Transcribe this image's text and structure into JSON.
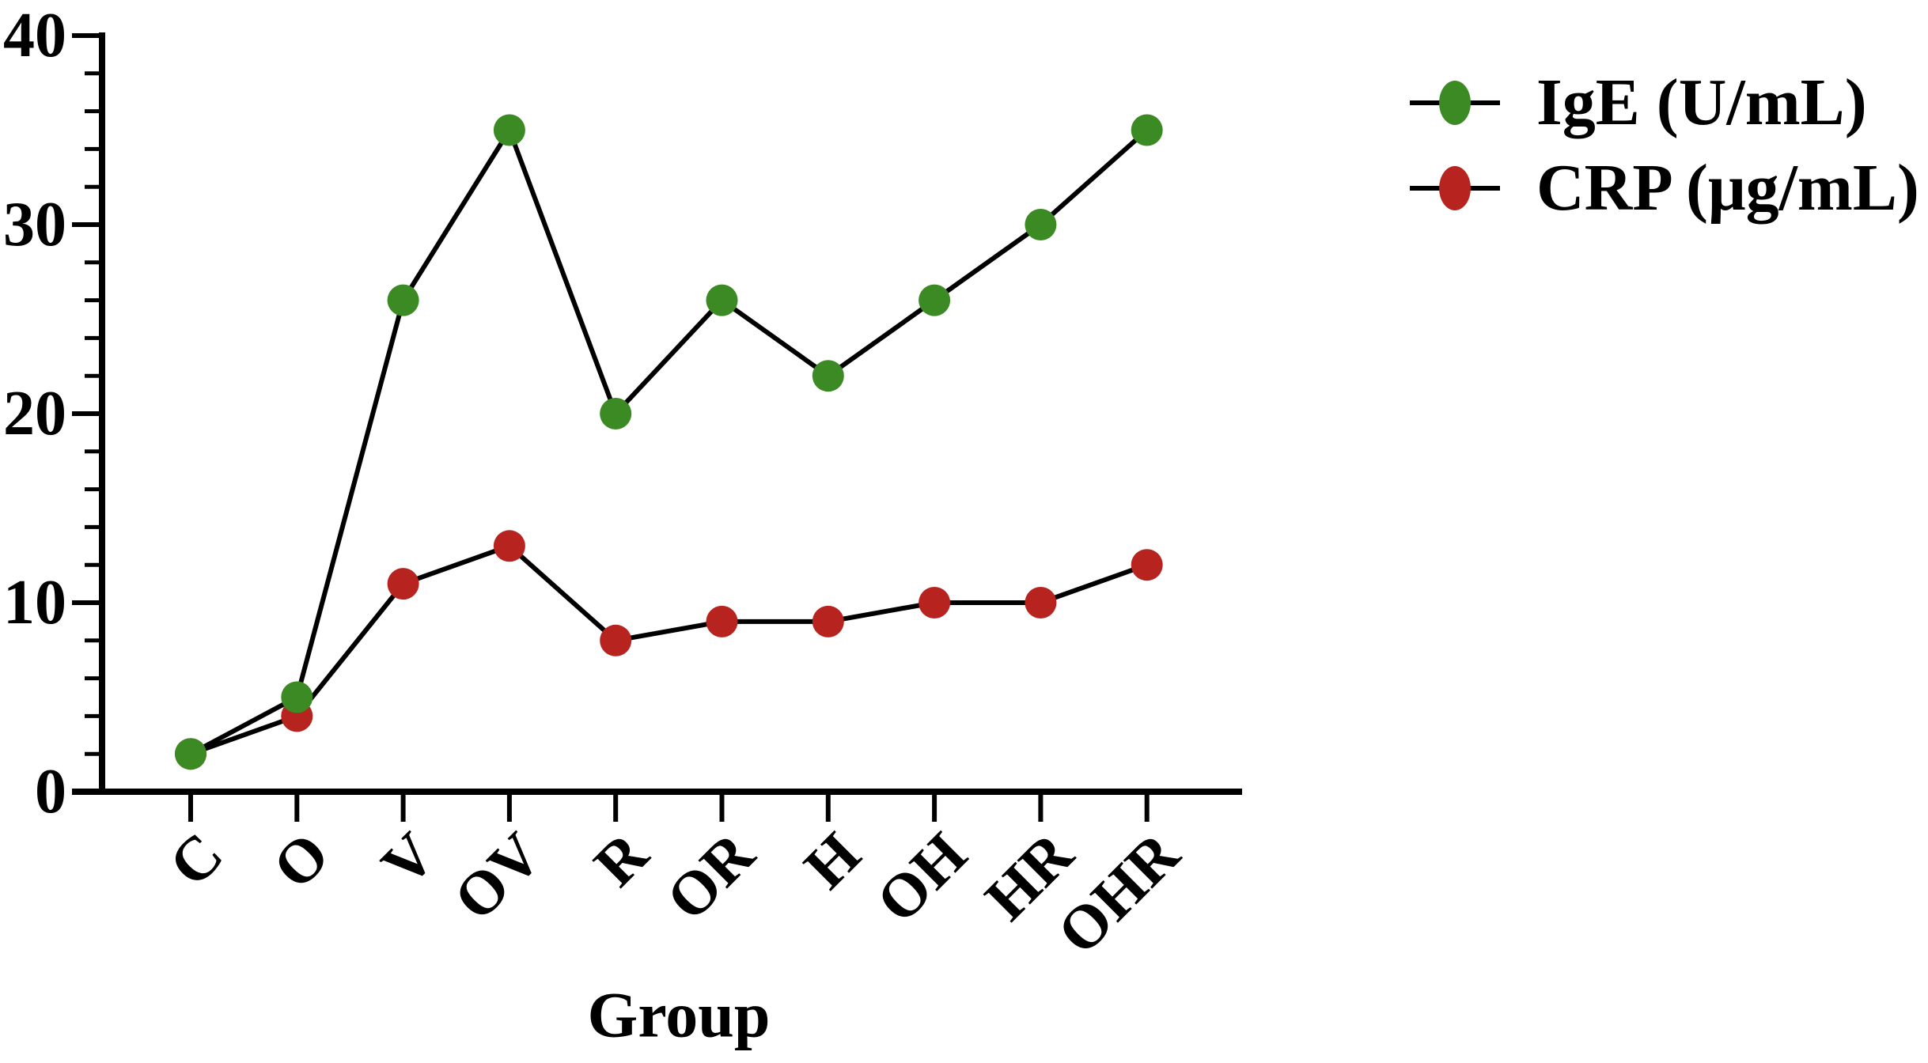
{
  "chart_data": {
    "type": "line",
    "title": "",
    "xlabel": "Group",
    "ylabel": "",
    "ylim": [
      0,
      40
    ],
    "yticks": [
      0,
      10,
      20,
      30,
      40
    ],
    "y_minor_step": 2,
    "grid": false,
    "legend_position": "top-right",
    "categories": [
      "C",
      "O",
      "V",
      "OV",
      "R",
      "OR",
      "H",
      "OH",
      "HR",
      "OHR"
    ],
    "series": [
      {
        "name": "IgE (U/mL)",
        "marker_color": "#3C8A23",
        "line_color": "#000000",
        "values": [
          2,
          5,
          26,
          35,
          20,
          26,
          22,
          26,
          30,
          35
        ]
      },
      {
        "name": "CRP (μg/mL)",
        "marker_color": "#B7231F",
        "line_color": "#000000",
        "values": [
          2,
          4,
          11,
          13,
          8,
          9,
          9,
          10,
          10,
          12
        ]
      }
    ],
    "axis_color": "#000000",
    "tick_label_color": "#000000"
  }
}
